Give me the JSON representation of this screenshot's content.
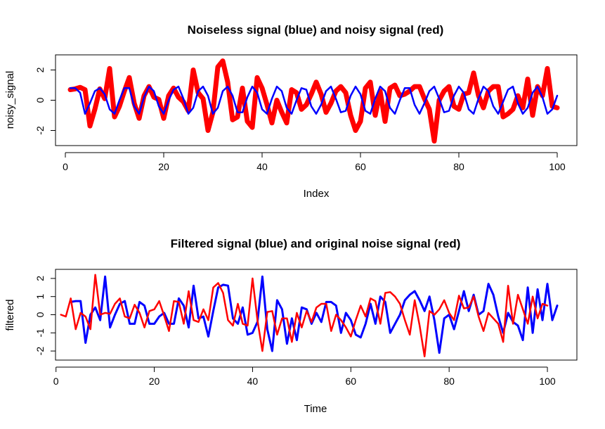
{
  "chart_data": [
    {
      "type": "line",
      "title": "Noiseless signal (blue) and noisy signal (red)",
      "xlabel": "Index",
      "ylabel": "noisy_signal",
      "xlim": [
        -2,
        104
      ],
      "ylim": [
        -3,
        3
      ],
      "xticks": [
        0,
        20,
        40,
        60,
        80,
        100
      ],
      "yticks": [
        -2,
        0,
        2
      ],
      "x": [
        1,
        2,
        3,
        4,
        5,
        6,
        7,
        8,
        9,
        10,
        11,
        12,
        13,
        14,
        15,
        16,
        17,
        18,
        19,
        20,
        21,
        22,
        23,
        24,
        25,
        26,
        27,
        28,
        29,
        30,
        31,
        32,
        33,
        34,
        35,
        36,
        37,
        38,
        39,
        40,
        41,
        42,
        43,
        44,
        45,
        46,
        47,
        48,
        49,
        50,
        51,
        52,
        53,
        54,
        55,
        56,
        57,
        58,
        59,
        60,
        61,
        62,
        63,
        64,
        65,
        66,
        67,
        68,
        69,
        70,
        71,
        72,
        73,
        74,
        75,
        76,
        77,
        78,
        79,
        80,
        81,
        82,
        83,
        84,
        85,
        86,
        87,
        88,
        89,
        90,
        91,
        92,
        93,
        94,
        95,
        96,
        97,
        98,
        99,
        100
      ],
      "series": [
        {
          "color": "#ff0000",
          "values": [
            0.7,
            0.75,
            0.85,
            0.7,
            -1.7,
            -0.6,
            0.75,
            0.1,
            2.1,
            -1.1,
            -0.4,
            0.6,
            1.5,
            -0.2,
            -1.2,
            0.3,
            0.9,
            0.2,
            0.05,
            -1.2,
            0.3,
            0.8,
            0.2,
            -0.1,
            -0.7,
            2.0,
            0.5,
            0.1,
            -2.0,
            -0.8,
            2.2,
            2.6,
            1.2,
            -1.3,
            -1.1,
            0.8,
            -1.4,
            -1.8,
            1.5,
            0.8,
            -0.3,
            -1.5,
            0.0,
            -0.8,
            -1.5,
            0.7,
            0.5,
            -0.6,
            -0.3,
            0.4,
            1.2,
            0.4,
            -0.8,
            -0.2,
            0.6,
            0.9,
            0.5,
            -1.0,
            -2.0,
            -1.4,
            0.8,
            1.2,
            -1.0,
            0.6,
            -1.4,
            0.8,
            1.0,
            0.3,
            0.4,
            0.6,
            0.9,
            0.9,
            0.1,
            -0.6,
            -2.7,
            0.0,
            0.6,
            0.9,
            -0.4,
            -0.6,
            0.4,
            0.5,
            1.8,
            0.3,
            -0.5,
            0.6,
            0.9,
            0.9,
            -1.1,
            -0.9,
            -0.6,
            0.3,
            -0.5,
            1.4,
            -1.0,
            0.9,
            0.3,
            2.1,
            -0.4,
            -0.5
          ],
          "line_width": 7
        },
        {
          "color": "#0000ff",
          "values": [
            0.8,
            0.8,
            0.5,
            -0.9,
            -0.2,
            0.6,
            0.8,
            0.4,
            -0.6,
            -0.9,
            0.0,
            0.8,
            0.8,
            -0.4,
            -0.9,
            0.2,
            0.9,
            0.6,
            -0.4,
            -0.9,
            0.0,
            0.7,
            0.9,
            0.1,
            -0.9,
            -0.5,
            0.6,
            0.9,
            0.3,
            -0.9,
            -0.5,
            0.6,
            0.9,
            0.3,
            -0.8,
            -0.8,
            0.2,
            0.9,
            0.5,
            -0.6,
            -0.9,
            0.1,
            0.9,
            0.6,
            -0.5,
            -0.9,
            0.0,
            0.8,
            0.7,
            -0.4,
            -0.9,
            -0.3,
            0.6,
            0.9,
            0.1,
            -0.8,
            -0.7,
            0.3,
            0.9,
            0.4,
            -0.7,
            -0.9,
            0.1,
            0.9,
            0.6,
            -0.5,
            -0.9,
            0.0,
            0.8,
            0.8,
            -0.3,
            -0.9,
            -0.2,
            0.6,
            0.9,
            0.1,
            -0.8,
            -0.7,
            0.3,
            0.9,
            0.5,
            -0.6,
            -0.9,
            0.1,
            0.9,
            0.6,
            -0.4,
            -0.9,
            -0.1,
            0.7,
            0.9,
            -0.2,
            -0.9,
            -0.5,
            0.5,
            0.9,
            0.2,
            -0.9,
            -0.6,
            0.3
          ],
          "line_width": 2.5
        }
      ]
    },
    {
      "type": "line",
      "title": "Filtered signal (blue) and original noise signal (red)",
      "xlabel": "Time",
      "ylabel": "filtered",
      "xlim": [
        -0.1,
        106
      ],
      "ylim": [
        -2.5,
        2.5
      ],
      "xticks": [
        0,
        20,
        40,
        60,
        80,
        100
      ],
      "yticks": [
        -2,
        -1,
        0,
        1,
        2
      ],
      "series": [
        {
          "color": "#0000ff",
          "x": [
            3,
            4,
            5,
            6,
            7,
            8,
            9,
            10,
            11,
            12,
            13,
            14,
            15,
            16,
            17,
            18,
            19,
            20,
            21,
            22,
            23,
            24,
            25,
            26,
            27,
            28,
            29,
            30,
            31,
            32,
            33,
            34,
            35,
            36,
            37,
            38,
            39,
            40,
            41,
            42,
            43,
            44,
            45,
            46,
            47,
            48,
            49,
            50,
            51,
            52,
            53,
            54,
            55,
            56,
            57,
            58,
            59,
            60,
            61,
            62,
            63,
            64,
            65,
            66,
            67,
            68,
            69,
            70,
            71,
            72,
            73,
            74,
            75,
            76,
            77,
            78,
            79,
            80,
            81,
            82,
            83,
            84,
            85,
            86,
            87,
            88,
            89,
            90,
            91,
            92,
            93,
            94,
            95,
            96,
            97,
            98,
            99,
            100,
            101,
            102
          ],
          "values": [
            0.7,
            0.75,
            0.75,
            -1.55,
            0.0,
            0.4,
            -0.3,
            2.1,
            -0.7,
            0.0,
            0.6,
            0.75,
            -0.5,
            -0.5,
            0.7,
            0.5,
            -0.5,
            -0.5,
            -0.1,
            0.1,
            -0.5,
            -0.5,
            0.9,
            0.5,
            -0.7,
            1.6,
            -0.2,
            -0.1,
            -1.2,
            0.2,
            1.5,
            1.65,
            1.6,
            -0.2,
            -0.5,
            0.4,
            -1.1,
            -1.0,
            -0.4,
            2.1,
            -0.8,
            -2.0,
            0.8,
            0.3,
            -1.6,
            -0.2,
            -1.4,
            0.4,
            0.3,
            -0.5,
            0.1,
            -0.4,
            0.7,
            0.7,
            0.5,
            -1.0,
            0.1,
            -0.3,
            -1.1,
            -1.25,
            -0.5,
            0.6,
            -0.5,
            1.0,
            0.7,
            -1.0,
            -0.5,
            0.0,
            0.8,
            1.1,
            1.3,
            0.8,
            0.2,
            1.0,
            -0.3,
            -2.1,
            -0.2,
            0.0,
            -0.8,
            0.2,
            1.3,
            0.2,
            1.1,
            0.0,
            0.2,
            1.7,
            1.1,
            -0.1,
            -1.0,
            0.1,
            -0.4,
            -0.6,
            -1.4,
            1.5,
            -1.0,
            1.4,
            -0.3,
            1.7,
            -0.3,
            0.5
          ],
          "line_width": 3
        },
        {
          "color": "#ff0000",
          "x": [
            1,
            2,
            3,
            4,
            5,
            6,
            7,
            8,
            9,
            10,
            11,
            12,
            13,
            14,
            15,
            16,
            17,
            18,
            19,
            20,
            21,
            22,
            23,
            24,
            25,
            26,
            27,
            28,
            29,
            30,
            31,
            32,
            33,
            34,
            35,
            36,
            37,
            38,
            39,
            40,
            41,
            42,
            43,
            44,
            45,
            46,
            47,
            48,
            49,
            50,
            51,
            52,
            53,
            54,
            55,
            56,
            57,
            58,
            59,
            60,
            61,
            62,
            63,
            64,
            65,
            66,
            67,
            68,
            69,
            70,
            71,
            72,
            73,
            74,
            75,
            76,
            77,
            78,
            79,
            80,
            81,
            82,
            83,
            84,
            85,
            86,
            87,
            88,
            89,
            90,
            91,
            92,
            93,
            94,
            95,
            96,
            97,
            98,
            99,
            100
          ],
          "values": [
            0.0,
            -0.1,
            0.9,
            -0.8,
            0.1,
            -0.1,
            -0.8,
            2.2,
            0.0,
            0.1,
            0.05,
            0.6,
            0.9,
            -0.1,
            -0.2,
            0.55,
            0.1,
            -0.7,
            0.2,
            0.3,
            0.75,
            -0.05,
            -0.9,
            0.75,
            0.7,
            -0.5,
            1.3,
            -0.3,
            -0.4,
            0.3,
            -0.3,
            1.5,
            1.75,
            1.2,
            -0.3,
            -0.6,
            0.6,
            -0.5,
            -0.6,
            2.0,
            -0.3,
            -2.0,
            0.15,
            0.2,
            -1.1,
            -0.2,
            -0.2,
            -1.5,
            0.1,
            -0.7,
            0.2,
            -0.4,
            0.4,
            0.6,
            0.6,
            -0.9,
            0.0,
            -0.3,
            -0.7,
            -1.2,
            -0.3,
            0.5,
            -0.1,
            0.9,
            0.75,
            -0.5,
            1.2,
            1.25,
            1.0,
            0.6,
            -0.3,
            -1.1,
            0.8,
            -0.6,
            -2.3,
            0.2,
            0.0,
            0.3,
            0.8,
            0.1,
            -0.3,
            1.05,
            0.35,
            0.4,
            1.0,
            -0.1,
            -0.9,
            0.1,
            -0.2,
            -0.5,
            -1.5,
            1.6,
            -0.5,
            1.1,
            0.3,
            -0.5,
            1.0,
            -0.2,
            0.6,
            0.5
          ],
          "line_width": 2.5
        }
      ]
    }
  ]
}
